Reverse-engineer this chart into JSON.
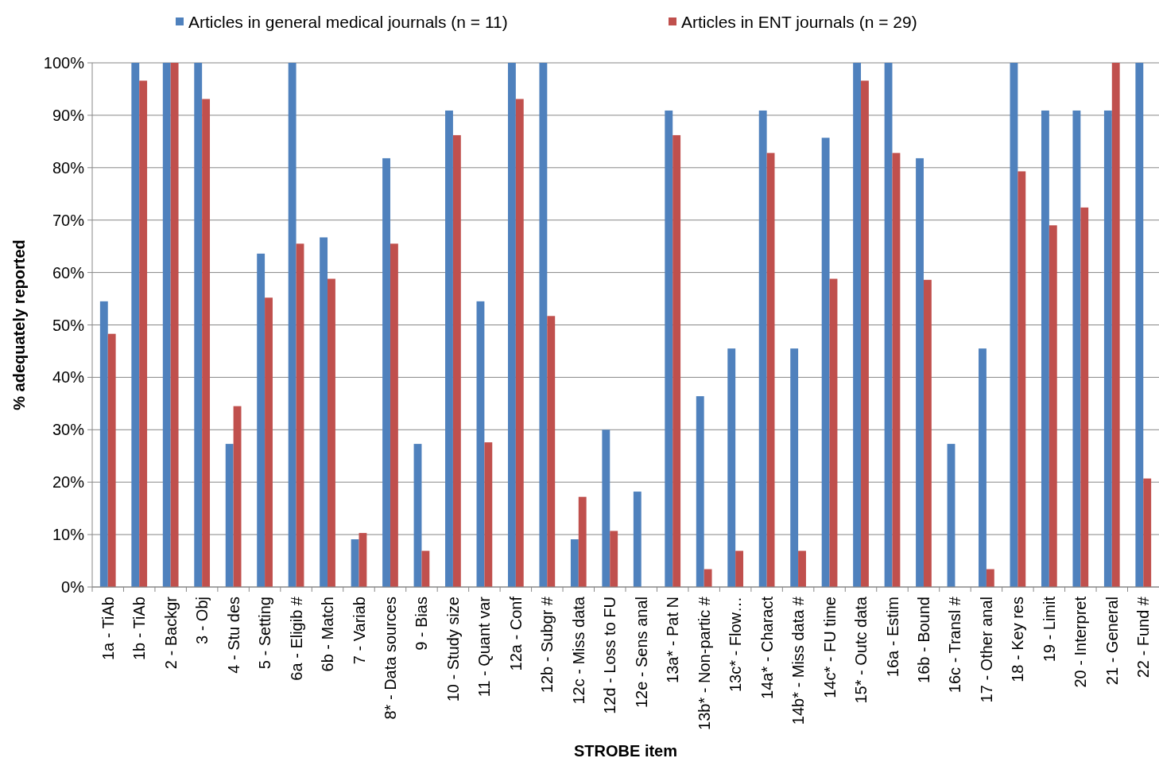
{
  "chart_data": {
    "type": "bar",
    "xlabel": "STROBE item",
    "ylabel": "% adequately reported",
    "categories": [
      "1a - TiAb",
      "1b - TiAb",
      "2 - Backgr",
      "3 - Obj",
      "4 - Stu des",
      "5 - Setting",
      "6a - Eligib #",
      "6b - Match",
      "7 - Variab",
      "8* - Data sources",
      "9 - Bias",
      "10 - Study size",
      "11 - Quant var",
      "12a - Conf",
      "12b - Subgr #",
      "12c - Miss data",
      "12d - Loss to FU",
      "12e - Sens anal",
      "13a* - Pat N",
      "13b* - Non-partic #",
      "13c* - Flow…",
      "14a* - Charact",
      "14b* - Miss data #",
      "14c* - FU time",
      "15* - Outc data",
      "16a - Estim",
      "16b - Bound",
      "16c - Transl #",
      "17 - Other anal",
      "18 - Key res",
      "19 - Limit",
      "20 - Interpret",
      "21 - General",
      "22 - Fund #"
    ],
    "series": [
      {
        "name": "Articles in general medical journals (n = 11)",
        "color": "#4f81bd",
        "values": [
          54.5,
          100,
          100,
          100,
          27.3,
          63.6,
          100,
          66.7,
          9.1,
          81.8,
          27.3,
          90.9,
          54.5,
          100,
          100,
          9.1,
          30,
          18.2,
          90.9,
          36.4,
          45.5,
          90.9,
          45.5,
          85.7,
          100,
          100,
          81.8,
          27.3,
          45.5,
          100,
          90.9,
          90.9,
          90.9,
          100
        ]
      },
      {
        "name": "Articles in ENT journals (n = 29)",
        "color": "#c0504d",
        "values": [
          48.3,
          96.6,
          100,
          93.1,
          34.5,
          55.2,
          65.5,
          58.8,
          10.3,
          65.5,
          6.9,
          86.2,
          27.6,
          93.1,
          51.7,
          17.2,
          10.7,
          0,
          86.2,
          3.4,
          6.9,
          82.8,
          6.9,
          58.8,
          96.6,
          82.8,
          58.6,
          0,
          3.4,
          79.3,
          69,
          72.4,
          100,
          20.7
        ]
      }
    ],
    "ylim": [
      0,
      100
    ],
    "yticks": [
      {
        "value": 0,
        "label": "0%"
      },
      {
        "value": 10,
        "label": "10%"
      },
      {
        "value": 20,
        "label": "20%"
      },
      {
        "value": 30,
        "label": "30%"
      },
      {
        "value": 40,
        "label": "40%"
      },
      {
        "value": 50,
        "label": "50%"
      },
      {
        "value": 60,
        "label": "60%"
      },
      {
        "value": 70,
        "label": "70%"
      },
      {
        "value": 80,
        "label": "80%"
      },
      {
        "value": 90,
        "label": "90%"
      },
      {
        "value": 100,
        "label": "100%"
      }
    ],
    "grid": "y",
    "legend": "top"
  }
}
